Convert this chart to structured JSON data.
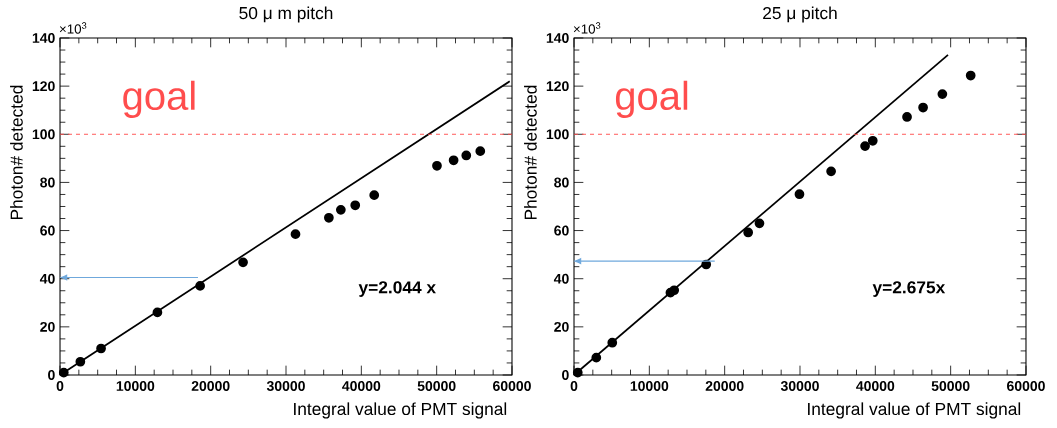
{
  "chart_data": [
    {
      "type": "scatter",
      "title": "50 μ m pitch",
      "xlabel": "Integral value of PMT signal",
      "ylabel": "Photon# detected",
      "xlim": [
        0,
        60000
      ],
      "ylim": [
        0,
        140
      ],
      "xticks": [
        0,
        10000,
        20000,
        30000,
        40000,
        50000,
        60000
      ],
      "yticks": [
        0,
        20,
        40,
        60,
        80,
        100,
        120,
        140
      ],
      "grid": false,
      "series": [
        {
          "color": "#000000",
          "marker": "circle",
          "x": [
            500,
            2700,
            5450,
            12930,
            18600,
            24300,
            31260,
            35690,
            37280,
            39190,
            41710,
            50040,
            52250,
            53930,
            55790
          ],
          "values": [
            1,
            5.5,
            11,
            26,
            37,
            46.8,
            58.5,
            65.3,
            68.6,
            70.5,
            74.7,
            86.9,
            89.2,
            91.2,
            93
          ]
        },
        {
          "type": "line",
          "color": "#000000",
          "marker": "none",
          "line_style": "solid",
          "x": [
            0,
            59700
          ],
          "values": [
            0,
            122
          ]
        }
      ],
      "ref_lines": [
        {
          "axis": "y",
          "value": 100,
          "label": "goal",
          "color": "#ff4d4d",
          "line_style": "dashed"
        }
      ],
      "annotations": [
        "y=2.044 x",
        "×10$^{3}$"
      ]
    },
    {
      "type": "scatter",
      "title": "25 μ pitch",
      "xlabel": "Integral value of PMT signal",
      "ylabel": "Photon# detected",
      "xlim": [
        0,
        60000
      ],
      "ylim": [
        0,
        140
      ],
      "xticks": [
        0,
        10000,
        20000,
        30000,
        40000,
        50000,
        60000
      ],
      "yticks": [
        0,
        20,
        40,
        60,
        80,
        100,
        120,
        140
      ],
      "grid": false,
      "series": [
        {
          "color": "#000000",
          "marker": "circle",
          "x": [
            500,
            2960,
            5080,
            12800,
            13300,
            17550,
            23120,
            24620,
            29930,
            34130,
            38640,
            39660,
            44210,
            46340,
            48900,
            52660
          ],
          "values": [
            1,
            7.2,
            13.4,
            34.2,
            35.2,
            45.9,
            59.2,
            63,
            75.1,
            84.6,
            95.1,
            97.3,
            107.2,
            111.1,
            116.7,
            124.4
          ]
        },
        {
          "type": "line",
          "color": "#000000",
          "marker": "none",
          "line_style": "solid",
          "x": [
            0,
            49650
          ],
          "values": [
            0,
            133
          ]
        }
      ],
      "ref_lines": [
        {
          "axis": "y",
          "value": 100,
          "label": "goal",
          "color": "#ff4d4d",
          "line_style": "dashed"
        }
      ],
      "annotations": [
        "y=2.675x",
        "×10$^{3}$"
      ]
    }
  ]
}
